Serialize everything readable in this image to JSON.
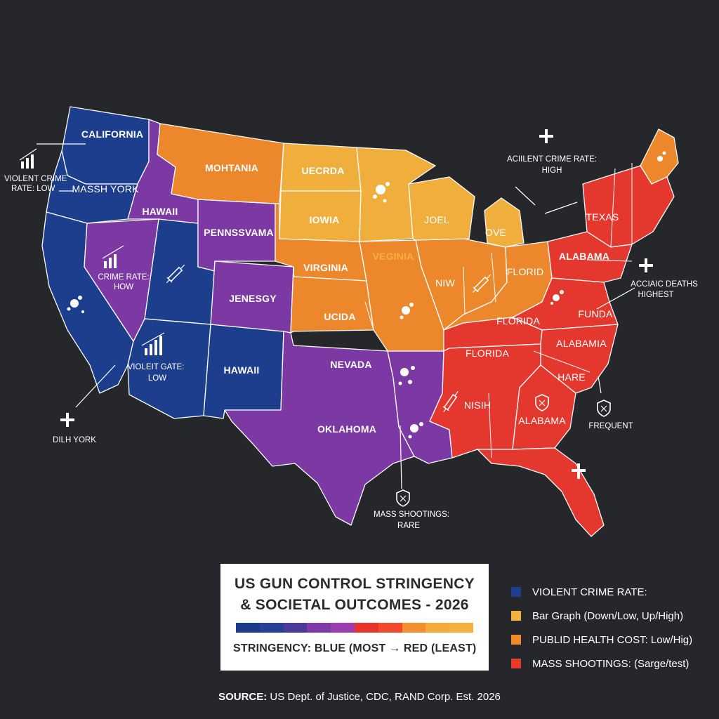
{
  "map": {
    "state_labels": [
      "CALIFORNIA",
      "MASSH YORK",
      "HAWAII",
      "MOHTANIA",
      "UECRDA",
      "IOWIA",
      "PENNSSVAMA",
      "VIRGINIA",
      "VEGINIA",
      "JENESGY",
      "UCIDA",
      "HAWAII",
      "NEVADA",
      "OKLAHOMA",
      "TEXAS",
      "ALABAMA",
      "FLORID",
      "FLORIDA",
      "FUNDA",
      "FLORIDA",
      "ALABAMIA",
      "HARE",
      "NISIH",
      "ALABAMA",
      "JOEL",
      "OVE",
      "NIW"
    ],
    "annotations": {
      "violent_low_1": "VIOLENT CRIME",
      "violent_low_2": "RATE: LOW",
      "crime_how_1": "CRIME RATE:",
      "crime_how_2": "HOW",
      "violent_gate_1": "VIOLEIT GATE:",
      "violent_gate_2": "LOW",
      "dilh_york": "DILH YORK",
      "acilent_1": "ACIILENT CRIME RATE:",
      "acilent_2": "HIGH",
      "accidic_1": "ACCIAIC DEATHS",
      "accidic_2": "HIGHEST",
      "frequent": "FREQUENT",
      "mass_rare_1": "MASS SHOOTINGS:",
      "mass_rare_2": "RARE"
    },
    "icons": [
      "bar-chart-icon",
      "syringe-icon",
      "cross-icon",
      "shield-icon",
      "splatter-icon"
    ]
  },
  "title": {
    "line1": "US GUN CONTROL STRINGENCY",
    "line2": "& SOCIETAL OUTCOMES - 2026",
    "scale_label": "STRINGENCY: BLUE (MOST → RED (LEAST)",
    "gradient_colors": [
      "#1e3a8a",
      "#2a3f98",
      "#4b3a9c",
      "#7e3aa6",
      "#9b3fb0",
      "#e8342c",
      "#ef4a2c",
      "#f2902f",
      "#f5a83b",
      "#f5b13e"
    ]
  },
  "legend": [
    {
      "label": "VIOLENT CRIME RATE:",
      "color": "#1d3f8f"
    },
    {
      "label": "Bar Graph  (Down/Low, Up/High)",
      "color": "#f5b13e"
    },
    {
      "label": "PUBLID HEALTH COST: Low/Hig)",
      "color": "#f08a2c"
    },
    {
      "label": "MASS SHOOTINGS: (Sarge/test)",
      "color": "#e8392f"
    }
  ],
  "source": {
    "prefix": "SOURCE:",
    "text": " US Dept. of Justice, CDC, RAND Corp. Est. 2026"
  },
  "colors": {
    "blue": "#1d3f8f",
    "purple": "#7e3aa6",
    "orange": "#f08a2c",
    "light_orange": "#f5b13e",
    "red": "#e8392f",
    "background": "#26272b"
  }
}
